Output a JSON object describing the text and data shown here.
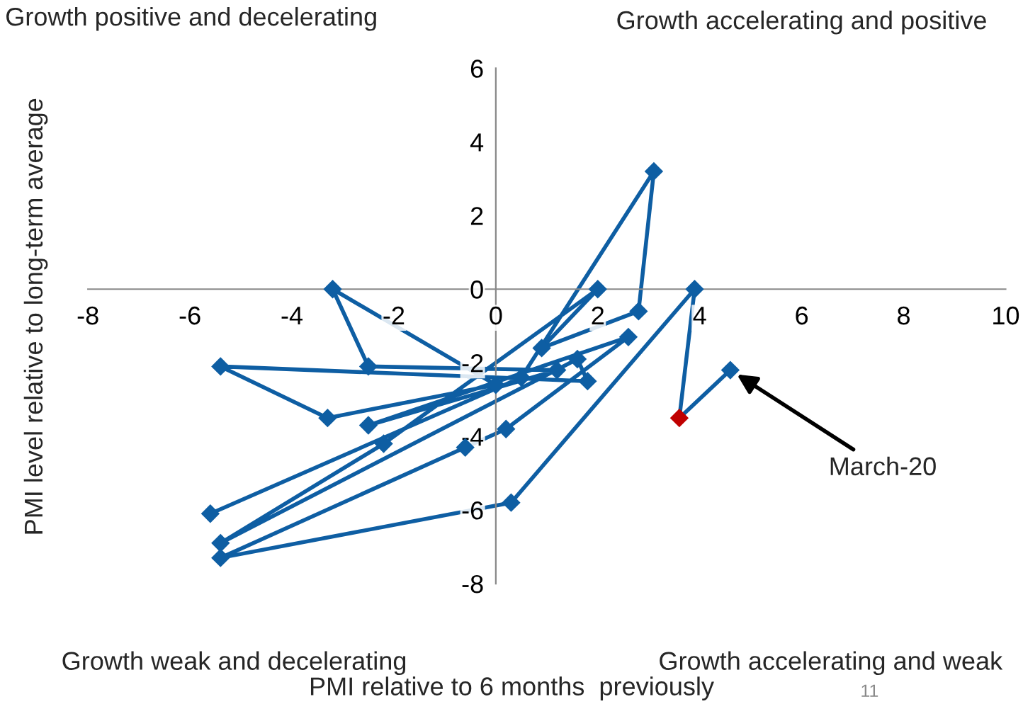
{
  "chart_data": {
    "type": "line",
    "xlabel": "PMI relative to 6 months  previously",
    "ylabel": "PMI level relative to long-term average",
    "x": [
      -5.6,
      0.5,
      3.1,
      2.8,
      0.9,
      2.0,
      -2.2,
      -5.4,
      1.6,
      1.8,
      -5.4,
      -3.3,
      0.0,
      -3.2,
      -2.5,
      1.2,
      -2.5,
      2.6,
      0.2,
      -0.6,
      -5.4,
      0.3,
      3.9,
      3.6,
      4.6
    ],
    "values": [
      -6.1,
      -2.4,
      3.2,
      -0.6,
      -1.6,
      0.0,
      -4.2,
      -6.9,
      -1.9,
      -2.5,
      -2.1,
      -3.5,
      -2.6,
      0.0,
      -2.1,
      -2.2,
      -3.7,
      -1.3,
      -3.8,
      -4.3,
      -7.3,
      -5.8,
      0.0,
      -3.5,
      -2.2
    ],
    "color": "#0e5ea3",
    "colors": [
      "#0e5ea3",
      "#0e5ea3",
      "#0e5ea3",
      "#0e5ea3",
      "#0e5ea3",
      "#0e5ea3",
      "#0e5ea3",
      "#0e5ea3",
      "#0e5ea3",
      "#0e5ea3",
      "#0e5ea3",
      "#0e5ea3",
      "#0e5ea3",
      "#0e5ea3",
      "#0e5ea3",
      "#0e5ea3",
      "#0e5ea3",
      "#0e5ea3",
      "#0e5ea3",
      "#0e5ea3",
      "#0e5ea3",
      "#0e5ea3",
      "#0e5ea3",
      "#c00000",
      "#0e5ea3"
    ],
    "marker": "diamond",
    "line_style": "solid",
    "grid": false,
    "legend": false,
    "xlim": [
      -8,
      10
    ],
    "xticks": [
      -8,
      -6,
      -4,
      -2,
      0,
      2,
      4,
      6,
      8,
      10
    ],
    "ylim": [
      -8,
      6
    ],
    "yticks": [
      -8,
      -6,
      -4,
      -2,
      0,
      2,
      4,
      6
    ],
    "annotations": [
      "Growth positive and decelerating",
      "Growth accelerating and positive",
      "Growth weak and decelerating",
      "Growth accelerating and weak",
      {
        "text": "March-20",
        "x": 4.6,
        "y": -2.2
      },
      "11"
    ]
  }
}
